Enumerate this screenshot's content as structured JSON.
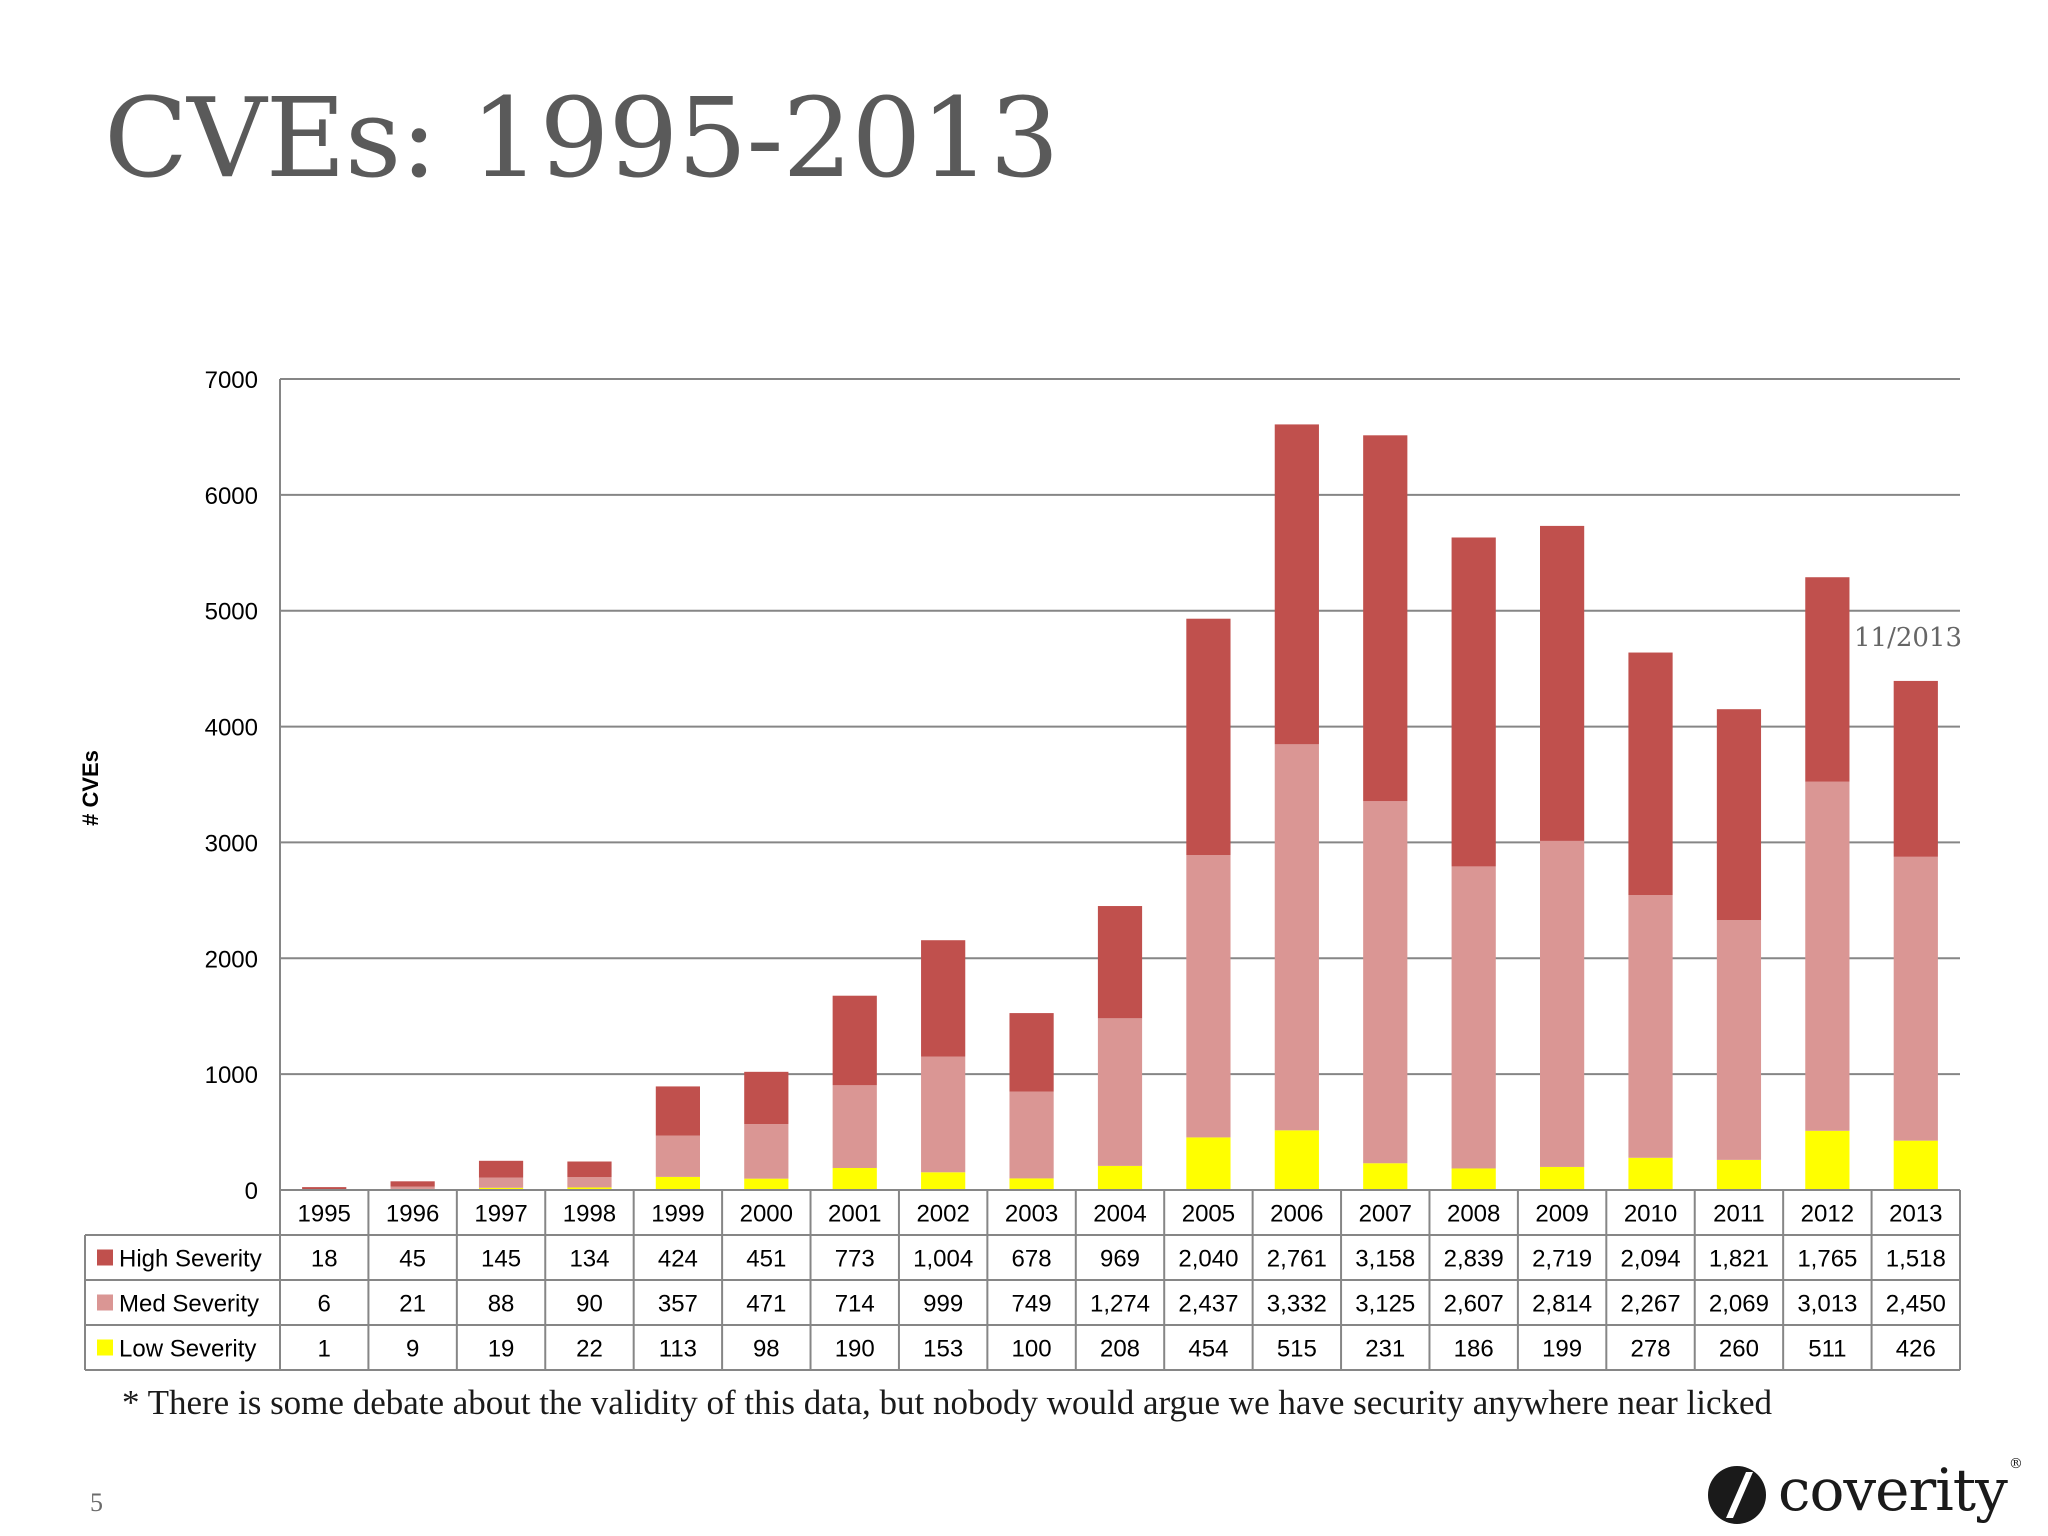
{
  "slide": {
    "title": "CVEs: 1995-2013",
    "footnote": "* There is some debate about the validity of this data, but nobody would argue we have security anywhere near licked",
    "page_number": "5",
    "logo_text": "coverity",
    "logo_mark": "®"
  },
  "chart_data": {
    "type": "bar",
    "stacked": true,
    "title": "",
    "xlabel": "",
    "ylabel": "# CVEs",
    "ylim": [
      0,
      7000
    ],
    "yticks": [
      0,
      1000,
      2000,
      3000,
      4000,
      5000,
      6000,
      7000
    ],
    "grid": true,
    "legend": "data-table",
    "annotation": "11/2013",
    "categories": [
      "1995",
      "1996",
      "1997",
      "1998",
      "1999",
      "2000",
      "2001",
      "2002",
      "2003",
      "2004",
      "2005",
      "2006",
      "2007",
      "2008",
      "2009",
      "2010",
      "2011",
      "2012",
      "2013"
    ],
    "series": [
      {
        "name": "Low Severity",
        "color": "#ffff00",
        "values": [
          1,
          9,
          19,
          22,
          113,
          98,
          190,
          153,
          100,
          208,
          454,
          515,
          231,
          186,
          199,
          278,
          260,
          511,
          426
        ],
        "labels": [
          "1",
          "9",
          "19",
          "22",
          "113",
          "98",
          "190",
          "153",
          "100",
          "208",
          "454",
          "515",
          "231",
          "186",
          "199",
          "278",
          "260",
          "511",
          "426"
        ]
      },
      {
        "name": "Med Severity",
        "color": "#da9694",
        "values": [
          6,
          21,
          88,
          90,
          357,
          471,
          714,
          999,
          749,
          1274,
          2437,
          3332,
          3125,
          2607,
          2814,
          2267,
          2069,
          3013,
          2450
        ],
        "labels": [
          "6",
          "21",
          "88",
          "90",
          "357",
          "471",
          "714",
          "999",
          "749",
          "1,274",
          "2,437",
          "3,332",
          "3,125",
          "2,607",
          "2,814",
          "2,267",
          "2,069",
          "3,013",
          "2,450"
        ]
      },
      {
        "name": "High Severity",
        "color": "#c0504d",
        "values": [
          18,
          45,
          145,
          134,
          424,
          451,
          773,
          1004,
          678,
          969,
          2040,
          2761,
          3158,
          2839,
          2719,
          2094,
          1821,
          1765,
          1518
        ],
        "labels": [
          "18",
          "45",
          "145",
          "134",
          "424",
          "451",
          "773",
          "1,004",
          "678",
          "969",
          "2,040",
          "2,761",
          "3,158",
          "2,839",
          "2,719",
          "2,094",
          "1,821",
          "1,765",
          "1,518"
        ]
      }
    ],
    "table_row_order": [
      "High Severity",
      "Med Severity",
      "Low Severity"
    ]
  }
}
